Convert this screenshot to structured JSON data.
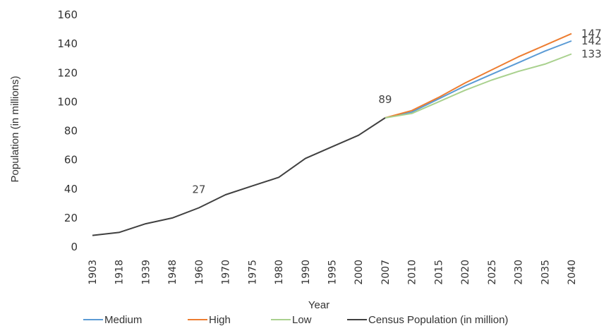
{
  "chart_data": {
    "type": "line",
    "title": "",
    "xlabel": "Year",
    "ylabel": "Population (in millions)",
    "ylim": [
      0,
      160
    ],
    "yticks": [
      "0",
      "20",
      "40",
      "60",
      "80",
      "100",
      "120",
      "140",
      "160"
    ],
    "categories": [
      "1903",
      "1918",
      "1939",
      "1948",
      "1960",
      "1970",
      "1975",
      "1980",
      "1990",
      "1995",
      "2000",
      "2007",
      "2010",
      "2015",
      "2020",
      "2025",
      "2030",
      "2035",
      "2040"
    ],
    "grid": false,
    "legend_position": "bottom",
    "series": [
      {
        "name": "Medium",
        "color": "#5b9bd5",
        "values": [
          null,
          null,
          null,
          null,
          null,
          null,
          null,
          null,
          null,
          null,
          null,
          89,
          93,
          102,
          111,
          119,
          127,
          135,
          142
        ]
      },
      {
        "name": "High",
        "color": "#ed7d31",
        "values": [
          null,
          null,
          null,
          null,
          null,
          null,
          null,
          null,
          null,
          null,
          null,
          89,
          94,
          103,
          113,
          122,
          131,
          139,
          147
        ]
      },
      {
        "name": "Low",
        "color": "#a9d18e",
        "values": [
          null,
          null,
          null,
          null,
          null,
          null,
          null,
          null,
          null,
          null,
          null,
          89,
          92,
          100,
          108,
          115,
          121,
          126,
          133
        ]
      },
      {
        "name": "Census Population (in million)",
        "color": "#404040",
        "values": [
          8,
          10,
          16,
          20,
          27,
          36,
          42,
          48,
          61,
          69,
          77,
          89,
          null,
          null,
          null,
          null,
          null,
          null,
          null
        ]
      }
    ],
    "annotations": [
      {
        "text": "27",
        "category": "1960",
        "value": 27
      },
      {
        "text": "89",
        "category": "2007",
        "value": 89
      },
      {
        "text": "147",
        "category": "2040",
        "value": 147
      },
      {
        "text": "142",
        "category": "2040",
        "value": 142
      },
      {
        "text": "133",
        "category": "2040",
        "value": 133
      }
    ]
  }
}
